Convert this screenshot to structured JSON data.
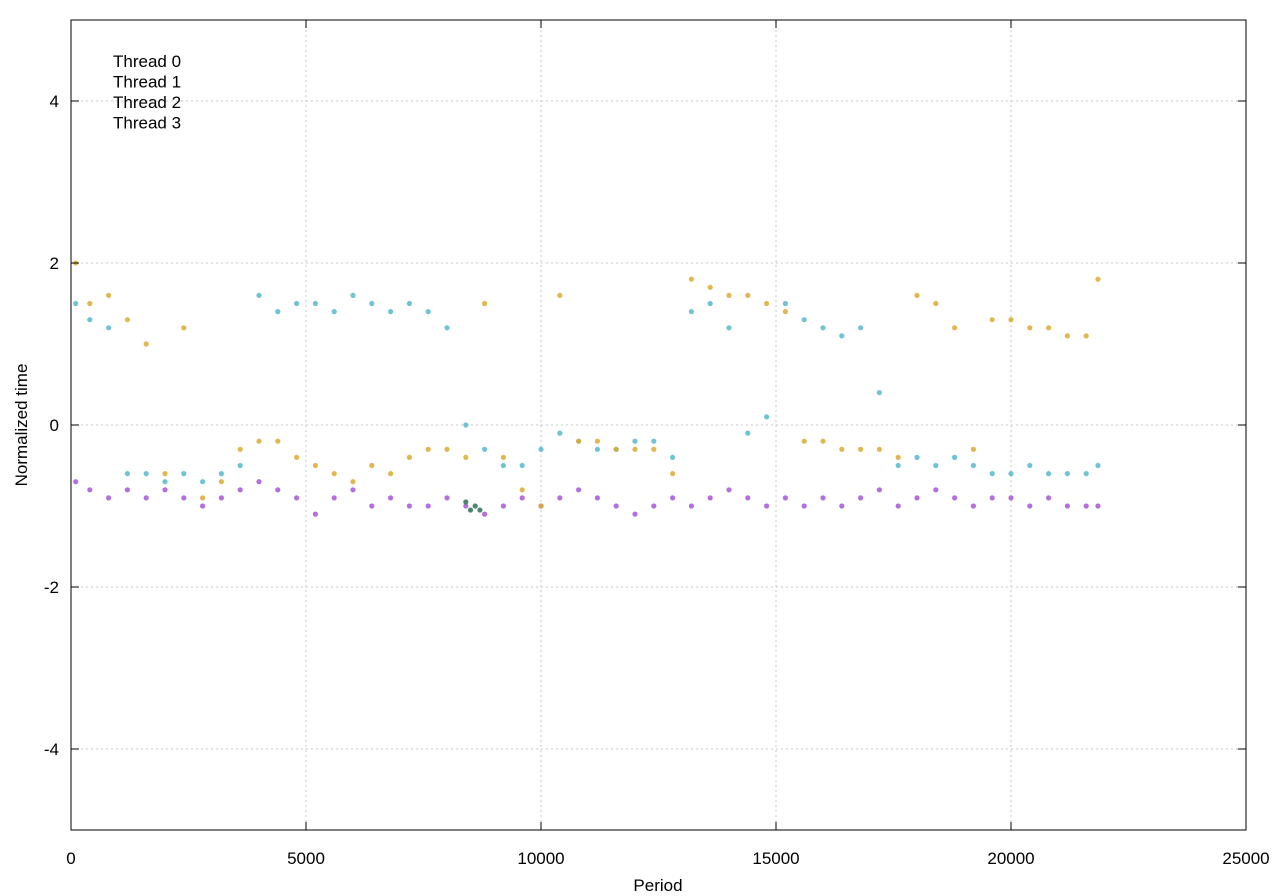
{
  "chart_data": {
    "type": "scatter",
    "title": "",
    "xlabel": "Period",
    "ylabel": "Normalized time",
    "xlim": [
      0,
      25000
    ],
    "ylim": [
      -5,
      5
    ],
    "grid": true,
    "legend_placement": "top-left",
    "xticks": [
      0,
      5000,
      10000,
      15000,
      20000,
      25000
    ],
    "xtick_labels": [
      "0",
      "5000",
      "10000",
      "15000",
      "20000",
      "25000"
    ],
    "yticks": [
      -4,
      -2,
      0,
      2,
      4
    ],
    "ytick_labels": [
      "-4",
      "-2",
      "0",
      "2",
      "4"
    ],
    "series": [
      {
        "name": "Thread 0",
        "color": "#a855d8",
        "x": [
          100,
          400,
          800,
          1200,
          1600,
          2000,
          2400,
          2800,
          3200,
          3600,
          4000,
          4400,
          4800,
          5200,
          5600,
          6000,
          6400,
          6800,
          7200,
          7600,
          8000,
          8400,
          8800,
          9200,
          9600,
          10000,
          10400,
          10800,
          11200,
          11600,
          12000,
          12400,
          12800,
          13200,
          13600,
          14000,
          14400,
          14800,
          15200,
          15600,
          16000,
          16400,
          16800,
          17200,
          17600,
          18000,
          18400,
          18800,
          19200,
          19600,
          20000,
          20400,
          20800,
          21200,
          21600,
          21850
        ],
        "y": [
          -0.7,
          -0.8,
          -0.9,
          -0.8,
          -0.9,
          -0.8,
          -0.9,
          -1.0,
          -0.9,
          -0.8,
          -0.7,
          -0.8,
          -0.9,
          -1.1,
          -0.9,
          -0.8,
          -1.0,
          -0.9,
          -1.0,
          -1.0,
          -0.9,
          -1.0,
          -1.1,
          -1.0,
          -0.9,
          -1.0,
          -0.9,
          -0.8,
          -0.9,
          -1.0,
          -1.1,
          -1.0,
          -0.9,
          -1.0,
          -0.9,
          -0.8,
          -0.9,
          -1.0,
          -0.9,
          -1.0,
          -0.9,
          -1.0,
          -0.9,
          -0.8,
          -1.0,
          -0.9,
          -0.8,
          -0.9,
          -1.0,
          -0.9,
          -0.9,
          -1.0,
          -0.9,
          -1.0,
          -1.0,
          -1.0
        ]
      },
      {
        "name": "Thread 1",
        "color": "#56b8cc",
        "x": [
          100,
          400,
          800,
          1200,
          1600,
          2000,
          2400,
          2800,
          3200,
          3600,
          4000,
          4400,
          4800,
          5200,
          5600,
          6000,
          6400,
          6800,
          7200,
          7600,
          8000,
          8400,
          8800,
          9200,
          9600,
          10000,
          10400,
          10800,
          11200,
          11600,
          12000,
          12400,
          12800,
          13200,
          13600,
          14000,
          14400,
          14800,
          15200,
          15600,
          16000,
          16400,
          16800,
          17200,
          17600,
          18000,
          18400,
          18800,
          19200,
          19600,
          20000,
          20400,
          20800,
          21200,
          21600,
          21850
        ],
        "y": [
          1.5,
          1.3,
          1.2,
          -0.6,
          -0.6,
          -0.7,
          -0.6,
          -0.7,
          -0.6,
          -0.5,
          1.6,
          1.4,
          1.5,
          1.5,
          1.4,
          1.6,
          1.5,
          1.4,
          1.5,
          1.4,
          1.2,
          0.0,
          -0.3,
          -0.5,
          -0.5,
          -0.3,
          -0.1,
          -0.2,
          -0.3,
          -0.3,
          -0.2,
          -0.2,
          -0.4,
          1.4,
          1.5,
          1.2,
          -0.1,
          0.1,
          1.5,
          1.3,
          1.2,
          1.1,
          1.2,
          0.4,
          -0.5,
          -0.4,
          -0.5,
          -0.4,
          -0.5,
          -0.6,
          -0.6,
          -0.5,
          -0.6,
          -0.6,
          -0.6,
          -0.5
        ]
      },
      {
        "name": "Thread 2",
        "color": "#dcaa30",
        "x": [
          100,
          400,
          800,
          1200,
          1600,
          2000,
          2400,
          2800,
          3200,
          3600,
          4000,
          4400,
          4800,
          5200,
          5600,
          6000,
          6400,
          6800,
          7200,
          7600,
          8000,
          8400,
          8800,
          9200,
          9600,
          10000,
          10400,
          10800,
          11200,
          11600,
          12000,
          12400,
          12800,
          13200,
          13600,
          14000,
          14400,
          14800,
          15200,
          15600,
          16000,
          16400,
          16800,
          17200,
          17600,
          18000,
          18400,
          18800,
          19200,
          19600,
          20000,
          20400,
          20800,
          21200,
          21600,
          21850
        ],
        "y": [
          2.0,
          1.5,
          1.6,
          1.3,
          1.0,
          -0.6,
          1.2,
          -0.9,
          -0.7,
          -0.3,
          -0.2,
          -0.2,
          -0.4,
          -0.5,
          -0.6,
          -0.7,
          -0.5,
          -0.6,
          -0.4,
          -0.3,
          -0.3,
          -0.4,
          1.5,
          -0.4,
          -0.8,
          -1.0,
          1.6,
          -0.2,
          -0.2,
          -0.3,
          -0.3,
          -0.3,
          -0.6,
          1.8,
          1.7,
          1.6,
          1.6,
          1.5,
          1.4,
          -0.2,
          -0.2,
          -0.3,
          -0.3,
          -0.3,
          -0.4,
          1.6,
          1.5,
          1.2,
          -0.3,
          1.3,
          1.3,
          1.2,
          1.2,
          1.1,
          1.1,
          1.8
        ]
      },
      {
        "name": "Thread 3",
        "color": "#2e6f5c",
        "x": [
          8400,
          8500,
          8600,
          8700
        ],
        "y": [
          -0.95,
          -1.05,
          -1.0,
          -1.05
        ]
      }
    ]
  }
}
